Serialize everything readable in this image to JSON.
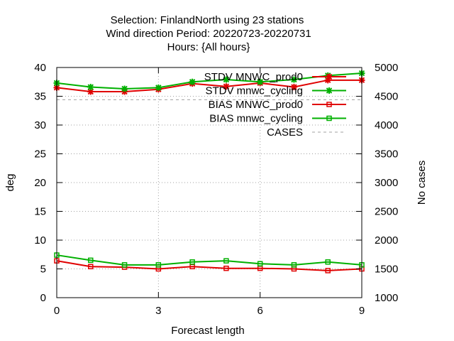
{
  "chart_data": {
    "type": "line",
    "title_lines": [
      "Selection: FinlandNorth using    23 stations",
      "Wind direction   Period: 20220723-20220731",
      "Hours: {All hours}"
    ],
    "xlabel": "Forecast length",
    "ylabel": "deg",
    "y2label": "No cases",
    "xlim": [
      0,
      9
    ],
    "ylim": [
      0,
      40
    ],
    "y2lim": [
      1000,
      5000
    ],
    "xticks": [
      "0",
      "3",
      "6",
      "9"
    ],
    "yticks": [
      "0",
      "5",
      "10",
      "15",
      "20",
      "25",
      "30",
      "35",
      "40"
    ],
    "y2ticks": [
      "1000",
      "1500",
      "2000",
      "2500",
      "3000",
      "3500",
      "4000",
      "4500",
      "5000"
    ],
    "grid": true,
    "legend_position": "top-right",
    "x": [
      0,
      1,
      2,
      3,
      4,
      5,
      6,
      7,
      8,
      9
    ],
    "series": [
      {
        "name": "STDV MNWC_prod0",
        "axis": "y1",
        "marker": "x-star",
        "color": "#e00000",
        "values": [
          36.5,
          35.8,
          35.8,
          36.2,
          37.2,
          36.7,
          37.3,
          36.6,
          37.8,
          37.8
        ]
      },
      {
        "name": "STDV mnwc_cycling",
        "axis": "y1",
        "marker": "x-star",
        "color": "#00b000",
        "values": [
          37.3,
          36.6,
          36.3,
          36.5,
          37.5,
          37.9,
          37.5,
          37.9,
          38.6,
          39.0
        ]
      },
      {
        "name": "BIAS MNWC_prod0",
        "axis": "y1",
        "marker": "square",
        "color": "#e00000",
        "values": [
          6.4,
          5.4,
          5.3,
          5.0,
          5.4,
          5.1,
          5.1,
          5.0,
          4.7,
          5.0
        ]
      },
      {
        "name": "BIAS mnwc_cycling",
        "axis": "y1",
        "marker": "square",
        "color": "#00b000",
        "values": [
          7.4,
          6.5,
          5.7,
          5.7,
          6.2,
          6.4,
          5.9,
          5.7,
          6.2,
          5.7
        ]
      },
      {
        "name": "CASES",
        "axis": "y2",
        "marker": "none",
        "color": "#a0a0a0",
        "dashed": true,
        "values": [
          4440,
          4440,
          4440,
          4440,
          4440,
          4440,
          4440,
          4440,
          4440,
          4440
        ]
      }
    ]
  }
}
